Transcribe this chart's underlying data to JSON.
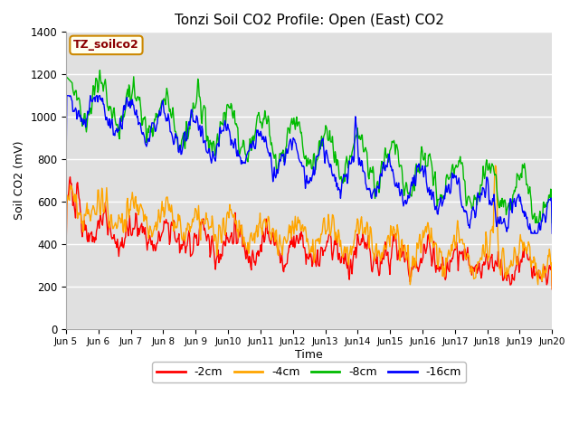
{
  "title": "Tonzi Soil CO2 Profile: Open (East) CO2",
  "xlabel": "Time",
  "ylabel": "Soil CO2 (mV)",
  "ylim": [
    0,
    1400
  ],
  "xlim_days": [
    5,
    20
  ],
  "fig_bg_color": "#ffffff",
  "plot_bg_color": "#e0e0e0",
  "legend_label": "TZ_soilco2",
  "series_labels": [
    "-2cm",
    "-4cm",
    "-8cm",
    "-16cm"
  ],
  "series_colors": [
    "#ff0000",
    "#ffa500",
    "#00bb00",
    "#0000ff"
  ],
  "xtick_labels": [
    "Jun 5",
    "Jun 6",
    "Jun 7",
    "Jun 8",
    "Jun 9",
    "Jun 10",
    "Jun 11",
    "Jun 12",
    "Jun 13",
    "Jun 14",
    "Jun 15",
    "Jun 16",
    "Jun 17",
    "Jun 18",
    "Jun 19",
    "Jun 20"
  ],
  "xtick_positions": [
    5,
    6,
    7,
    8,
    9,
    10,
    11,
    12,
    13,
    14,
    15,
    16,
    17,
    18,
    19,
    20
  ],
  "ytick_labels": [
    "0",
    "200",
    "400",
    "600",
    "800",
    "1000",
    "1200",
    "1400"
  ],
  "ytick_positions": [
    0,
    200,
    400,
    600,
    800,
    1000,
    1200,
    1400
  ],
  "linewidth": 1.0
}
